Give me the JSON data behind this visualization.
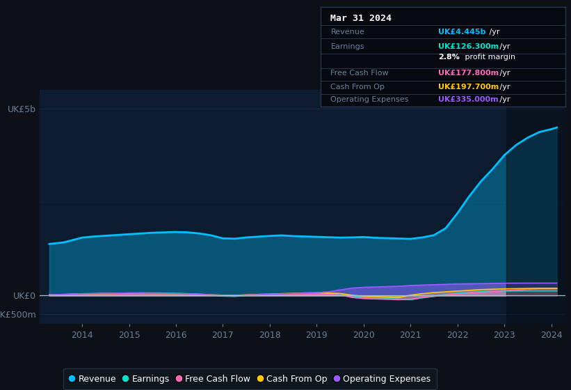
{
  "bg_color": "#0d1117",
  "plot_bg_color": "#0d1b2e",
  "years": [
    2013.3,
    2013.6,
    2014.0,
    2014.25,
    2014.5,
    2014.75,
    2015.0,
    2015.25,
    2015.5,
    2015.75,
    2016.0,
    2016.25,
    2016.5,
    2016.75,
    2017.0,
    2017.25,
    2017.5,
    2017.75,
    2018.0,
    2018.25,
    2018.5,
    2018.75,
    2019.0,
    2019.25,
    2019.5,
    2019.75,
    2020.0,
    2020.25,
    2020.5,
    2020.75,
    2021.0,
    2021.25,
    2021.5,
    2021.75,
    2022.0,
    2022.25,
    2022.5,
    2022.75,
    2023.0,
    2023.25,
    2023.5,
    2023.75,
    2024.0,
    2024.12
  ],
  "revenue": [
    1380,
    1420,
    1550,
    1580,
    1600,
    1620,
    1640,
    1660,
    1680,
    1690,
    1700,
    1690,
    1660,
    1610,
    1530,
    1520,
    1555,
    1575,
    1595,
    1610,
    1590,
    1580,
    1570,
    1560,
    1550,
    1555,
    1565,
    1545,
    1535,
    1525,
    1515,
    1555,
    1615,
    1800,
    2200,
    2650,
    3050,
    3380,
    3750,
    4020,
    4220,
    4370,
    4445,
    4490
  ],
  "earnings": [
    25,
    30,
    50,
    55,
    60,
    65,
    70,
    75,
    72,
    67,
    62,
    52,
    42,
    22,
    -8,
    -18,
    12,
    22,
    32,
    42,
    52,
    62,
    68,
    58,
    48,
    -25,
    -65,
    -75,
    -85,
    -95,
    -105,
    -55,
    -15,
    32,
    62,
    82,
    102,
    112,
    122,
    125,
    126,
    127,
    126.3,
    126
  ],
  "free_cash_flow": [
    18,
    22,
    35,
    40,
    45,
    50,
    55,
    52,
    47,
    42,
    37,
    32,
    22,
    12,
    2,
    -3,
    12,
    17,
    22,
    27,
    32,
    37,
    42,
    32,
    22,
    -45,
    -75,
    -85,
    -95,
    -105,
    -95,
    -45,
    -15,
    22,
    42,
    62,
    82,
    102,
    132,
    152,
    167,
    177,
    177.8,
    178
  ],
  "cash_from_op": [
    28,
    32,
    45,
    50,
    55,
    60,
    65,
    62,
    57,
    52,
    47,
    42,
    32,
    22,
    12,
    7,
    22,
    32,
    42,
    52,
    62,
    72,
    78,
    68,
    58,
    12,
    -18,
    -28,
    -38,
    -48,
    12,
    52,
    82,
    102,
    122,
    142,
    162,
    172,
    182,
    187,
    192,
    197,
    197.7,
    198
  ],
  "operating_expenses": [
    28,
    32,
    50,
    55,
    60,
    65,
    70,
    67,
    62,
    57,
    52,
    47,
    37,
    22,
    7,
    2,
    17,
    27,
    37,
    47,
    57,
    67,
    77,
    102,
    152,
    202,
    222,
    232,
    242,
    252,
    272,
    282,
    292,
    302,
    312,
    317,
    322,
    327,
    332,
    333,
    334,
    335,
    335,
    335
  ],
  "revenue_color": "#00bfff",
  "earnings_color": "#00e5cc",
  "free_cash_flow_color": "#ff69b4",
  "cash_from_op_color": "#ffc800",
  "operating_expenses_color": "#9b59ff",
  "grid_color": "#1a2d45",
  "axis_label_color": "#6b7f99",
  "zero_line_color": "#aabbcc",
  "x_ticks": [
    2014,
    2015,
    2016,
    2017,
    2018,
    2019,
    2020,
    2021,
    2022,
    2023,
    2024
  ],
  "y_tick_vals": [
    5000,
    0,
    -500
  ],
  "y_tick_labels": [
    "UK£5b",
    "UK£0",
    "-UK£500m"
  ],
  "ylim": [
    -750,
    5500
  ],
  "xlim_min": 2013.1,
  "xlim_max": 2024.3,
  "tooltip_title": "Mar 31 2024",
  "tooltip_label_color": "#6b7f99",
  "legend_entries": [
    {
      "label": "Revenue",
      "color": "#00bfff"
    },
    {
      "label": "Earnings",
      "color": "#00e5cc"
    },
    {
      "label": "Free Cash Flow",
      "color": "#ff69b4"
    },
    {
      "label": "Cash From Op",
      "color": "#ffc800"
    },
    {
      "label": "Operating Expenses",
      "color": "#9b59ff"
    }
  ]
}
